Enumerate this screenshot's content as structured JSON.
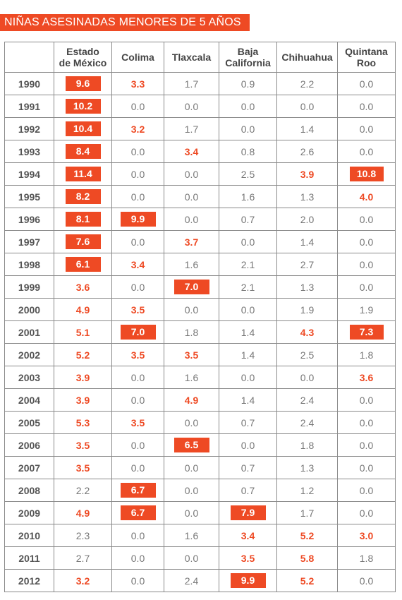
{
  "title": "NIÑAS ASESINADAS MENORES DE 5 AÑOS",
  "chart_data": {
    "type": "table",
    "columns": [
      {
        "line1": "Estado",
        "line2": "de México"
      },
      {
        "line1": "Colima",
        "line2": ""
      },
      {
        "line1": "Tlaxcala",
        "line2": ""
      },
      {
        "line1": "Baja",
        "line2": "California"
      },
      {
        "line1": "Chihuahua",
        "line2": ""
      },
      {
        "line1": "Quintana",
        "line2": "Roo"
      }
    ],
    "rows": [
      {
        "year": "1990",
        "values": [
          "9.6",
          "3.3",
          "1.7",
          "0.9",
          "2.2",
          "0.0"
        ],
        "styles": [
          "box",
          "hl",
          "n",
          "n",
          "n",
          "n"
        ]
      },
      {
        "year": "1991",
        "values": [
          "10.2",
          "0.0",
          "0.0",
          "0.0",
          "0.0",
          "0.0"
        ],
        "styles": [
          "box",
          "n",
          "n",
          "n",
          "n",
          "n"
        ]
      },
      {
        "year": "1992",
        "values": [
          "10.4",
          "3.2",
          "1.7",
          "0.0",
          "1.4",
          "0.0"
        ],
        "styles": [
          "box",
          "hl",
          "n",
          "n",
          "n",
          "n"
        ]
      },
      {
        "year": "1993",
        "values": [
          "8.4",
          "0.0",
          "3.4",
          "0.8",
          "2.6",
          "0.0"
        ],
        "styles": [
          "box",
          "n",
          "hl",
          "n",
          "n",
          "n"
        ]
      },
      {
        "year": "1994",
        "values": [
          "11.4",
          "0.0",
          "0.0",
          "2.5",
          "3.9",
          "10.8"
        ],
        "styles": [
          "box",
          "n",
          "n",
          "n",
          "hl",
          "box"
        ]
      },
      {
        "year": "1995",
        "values": [
          "8.2",
          "0.0",
          "0.0",
          "1.6",
          "1.3",
          "4.0"
        ],
        "styles": [
          "box",
          "n",
          "n",
          "n",
          "n",
          "hl"
        ]
      },
      {
        "year": "1996",
        "values": [
          "8.1",
          "9.9",
          "0.0",
          "0.7",
          "2.0",
          "0.0"
        ],
        "styles": [
          "box",
          "box",
          "n",
          "n",
          "n",
          "n"
        ]
      },
      {
        "year": "1997",
        "values": [
          "7.6",
          "0.0",
          "3.7",
          "0.0",
          "1.4",
          "0.0"
        ],
        "styles": [
          "box",
          "n",
          "hl",
          "n",
          "n",
          "n"
        ]
      },
      {
        "year": "1998",
        "values": [
          "6.1",
          "3.4",
          "1.6",
          "2.1",
          "2.7",
          "0.0"
        ],
        "styles": [
          "box",
          "hl",
          "n",
          "n",
          "n",
          "n"
        ]
      },
      {
        "year": "1999",
        "values": [
          "3.6",
          "0.0",
          "7.0",
          "2.1",
          "1.3",
          "0.0"
        ],
        "styles": [
          "hl",
          "n",
          "box",
          "n",
          "n",
          "n"
        ]
      },
      {
        "year": "2000",
        "values": [
          "4.9",
          "3.5",
          "0.0",
          "0.0",
          "1.9",
          "1.9"
        ],
        "styles": [
          "hl",
          "hl",
          "n",
          "n",
          "n",
          "n"
        ]
      },
      {
        "year": "2001",
        "values": [
          "5.1",
          "7.0",
          "1.8",
          "1.4",
          "4.3",
          "7.3"
        ],
        "styles": [
          "hl",
          "box",
          "n",
          "n",
          "hl",
          "box"
        ]
      },
      {
        "year": "2002",
        "values": [
          "5.2",
          "3.5",
          "3.5",
          "1.4",
          "2.5",
          "1.8"
        ],
        "styles": [
          "hl",
          "hl",
          "hl",
          "n",
          "n",
          "n"
        ]
      },
      {
        "year": "2003",
        "values": [
          "3.9",
          "0.0",
          "1.6",
          "0.0",
          "0.0",
          "3.6"
        ],
        "styles": [
          "hl",
          "n",
          "n",
          "n",
          "n",
          "hl"
        ]
      },
      {
        "year": "2004",
        "values": [
          "3.9",
          "0.0",
          "4.9",
          "1.4",
          "2.4",
          "0.0"
        ],
        "styles": [
          "hl",
          "n",
          "hl",
          "n",
          "n",
          "n"
        ]
      },
      {
        "year": "2005",
        "values": [
          "5.3",
          "3.5",
          "0.0",
          "0.7",
          "2.4",
          "0.0"
        ],
        "styles": [
          "hl",
          "hl",
          "n",
          "n",
          "n",
          "n"
        ]
      },
      {
        "year": "2006",
        "values": [
          "3.5",
          "0.0",
          "6.5",
          "0.0",
          "1.8",
          "0.0"
        ],
        "styles": [
          "hl",
          "n",
          "box",
          "n",
          "n",
          "n"
        ]
      },
      {
        "year": "2007",
        "values": [
          "3.5",
          "0.0",
          "0.0",
          "0.7",
          "1.3",
          "0.0"
        ],
        "styles": [
          "hl",
          "n",
          "n",
          "n",
          "n",
          "n"
        ]
      },
      {
        "year": "2008",
        "values": [
          "2.2",
          "6.7",
          "0.0",
          "0.7",
          "1.2",
          "0.0"
        ],
        "styles": [
          "n",
          "box",
          "n",
          "n",
          "n",
          "n"
        ]
      },
      {
        "year": "2009",
        "values": [
          "4.9",
          "6.7",
          "0.0",
          "7.9",
          "1.7",
          "0.0"
        ],
        "styles": [
          "hl",
          "box",
          "n",
          "box",
          "n",
          "n"
        ]
      },
      {
        "year": "2010",
        "values": [
          "2.3",
          "0.0",
          "1.6",
          "3.4",
          "5.2",
          "3.0"
        ],
        "styles": [
          "n",
          "n",
          "n",
          "hl",
          "hl",
          "hl"
        ]
      },
      {
        "year": "2011",
        "values": [
          "2.7",
          "0.0",
          "0.0",
          "3.5",
          "5.8",
          "1.8"
        ],
        "styles": [
          "n",
          "n",
          "n",
          "hl",
          "hl",
          "n"
        ]
      },
      {
        "year": "2012",
        "values": [
          "3.2",
          "0.0",
          "2.4",
          "9.9",
          "5.2",
          "0.0"
        ],
        "styles": [
          "hl",
          "n",
          "n",
          "box",
          "hl",
          "n"
        ]
      }
    ]
  },
  "colors": {
    "accent": "#ee4a24",
    "text": "#777777",
    "border": "#8a8a8a"
  }
}
